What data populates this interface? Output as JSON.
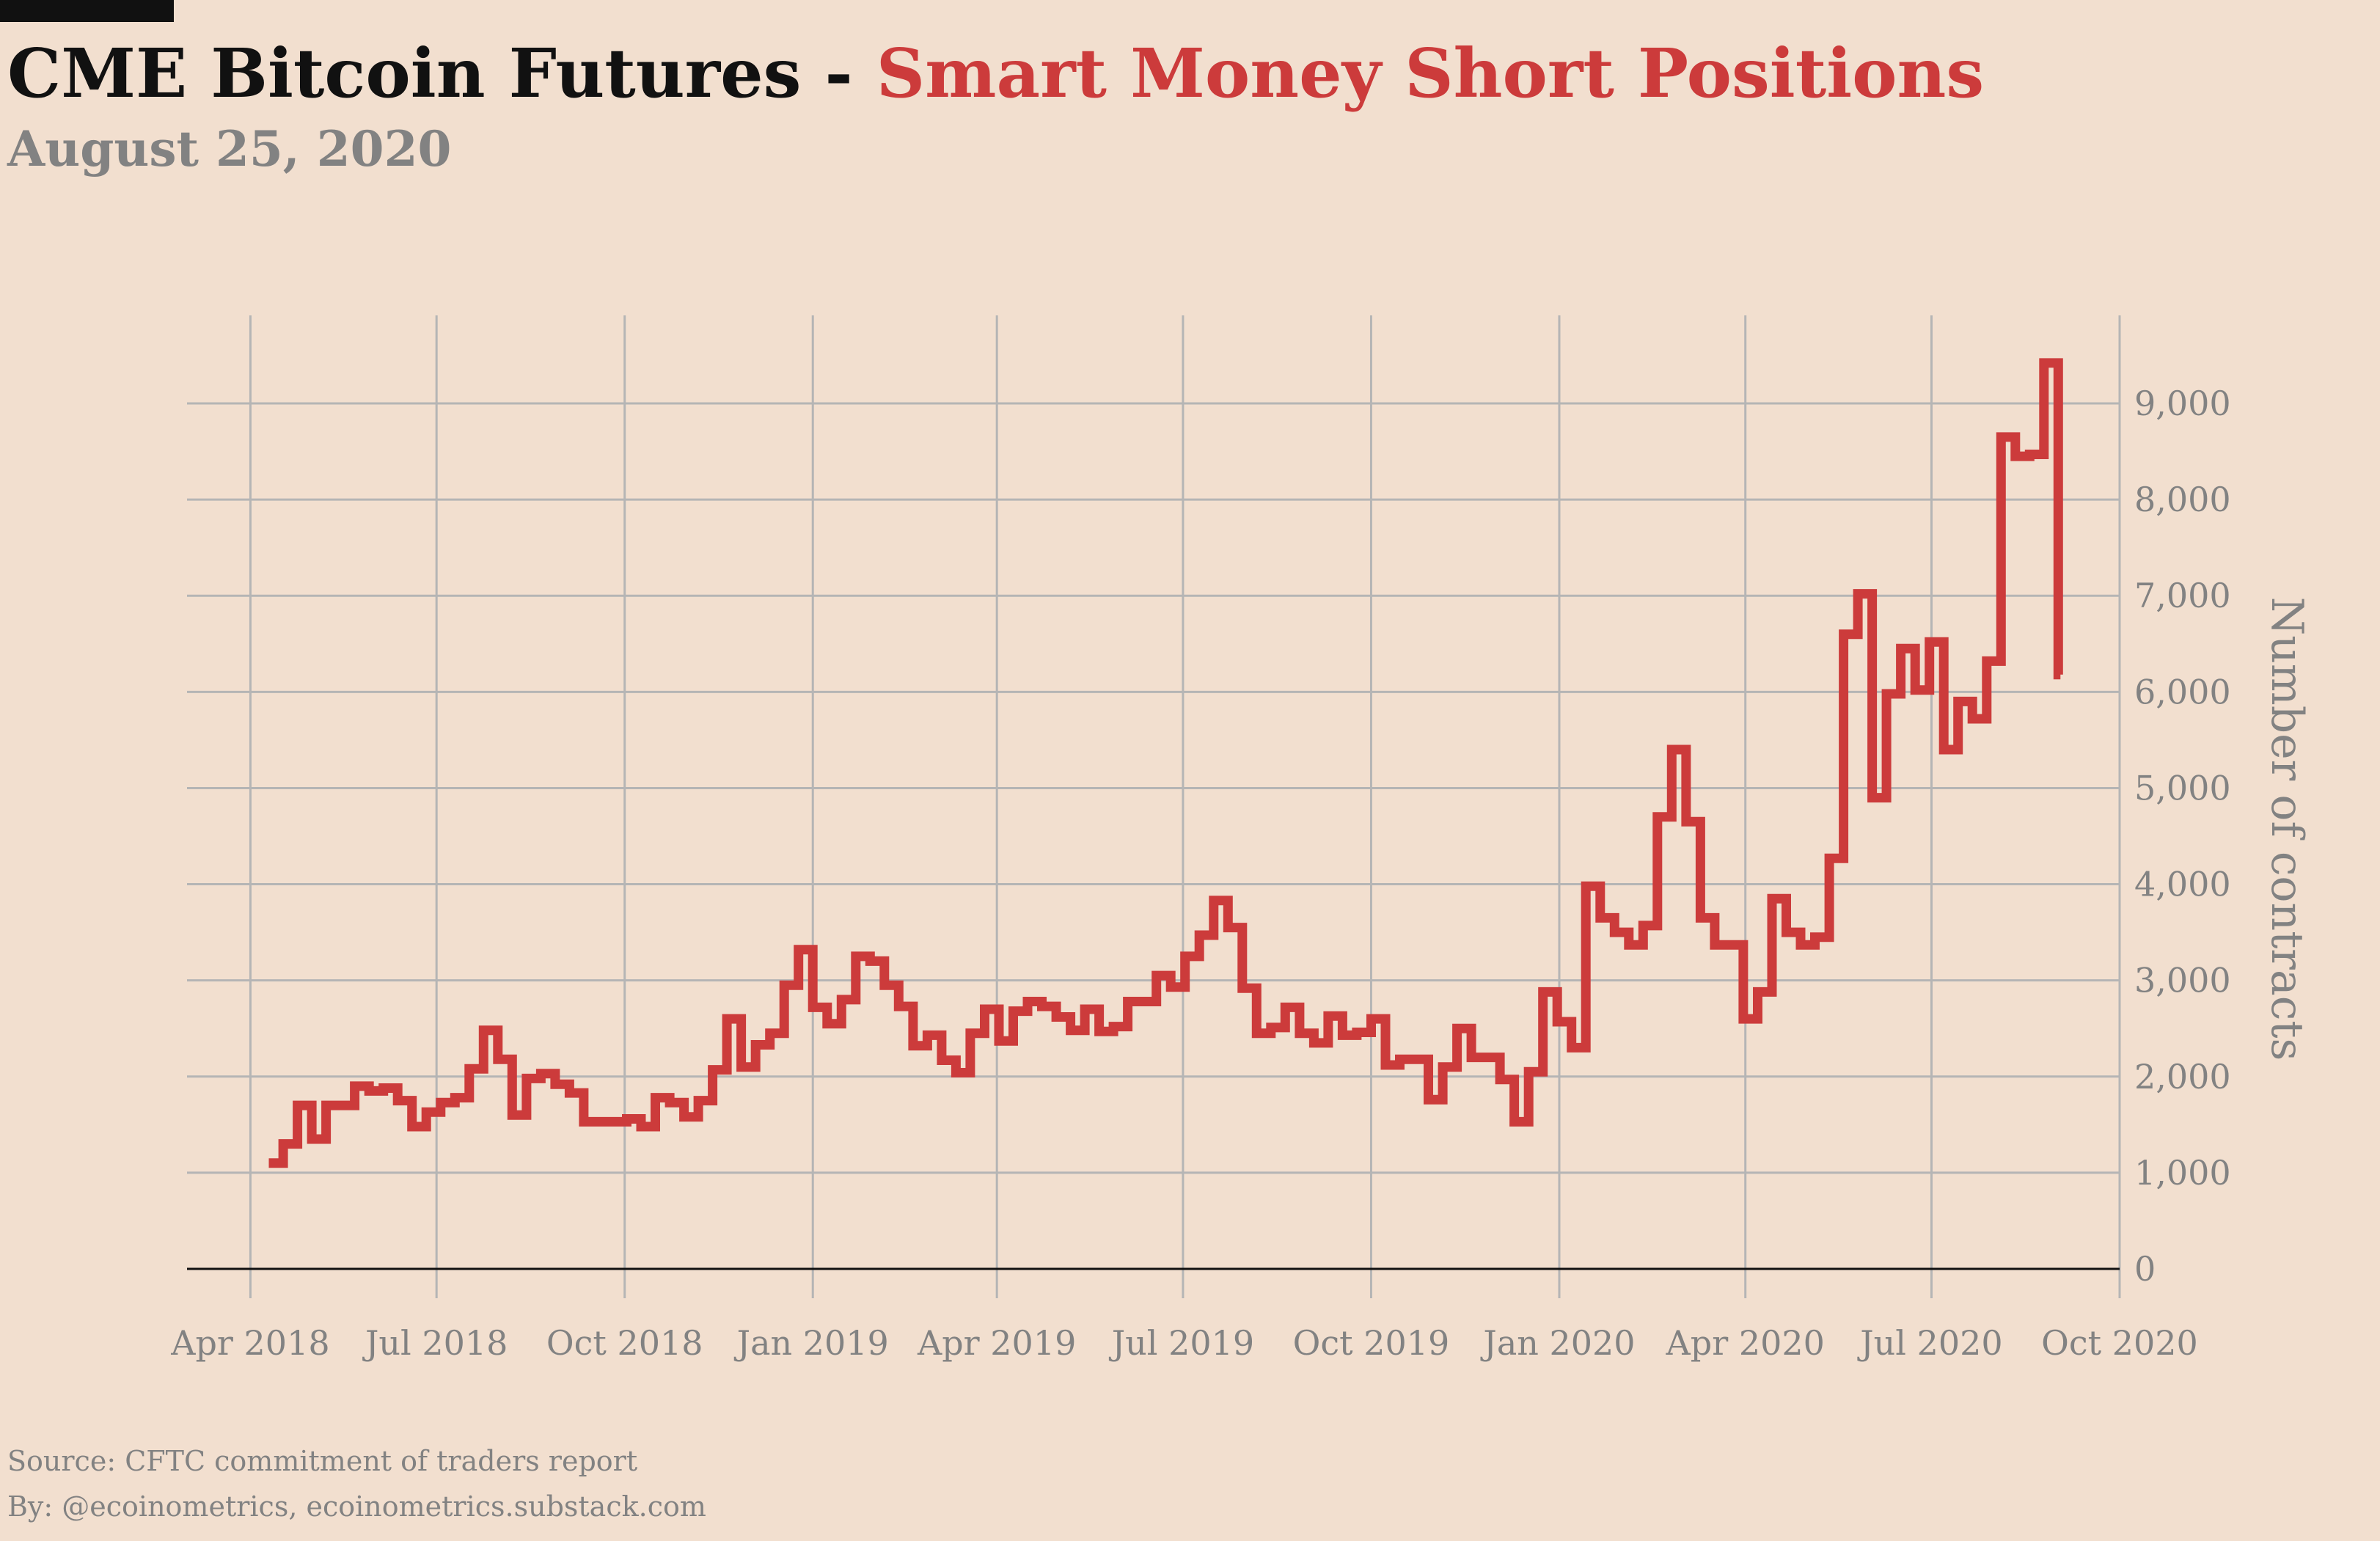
{
  "header": {
    "title_black": "CME Bitcoin Futures - ",
    "title_red": "Smart Money Short Positions",
    "subtitle": "August 25, 2020"
  },
  "footer": {
    "source": "Source: CFTC commitment of traders report",
    "by": "By: @ecoinometrics, ecoinometrics.substack.com"
  },
  "colors": {
    "background": "#f2dfcf",
    "series": "#cc3b3b",
    "grid": "#b5b5b5",
    "text_gray": "#828282",
    "title_black": "#111111"
  },
  "chart_data": {
    "type": "line",
    "step": true,
    "title": "CME Bitcoin Futures - Smart Money Short Positions",
    "subtitle": "August 25, 2020",
    "xlabel": "",
    "ylabel": "Number of contracts",
    "y_axis_side": "right",
    "ylim": [
      0,
      9800
    ],
    "xlim": [
      "2018-03-01",
      "2020-10-01"
    ],
    "grid": true,
    "y_ticks": [
      0,
      1000,
      2000,
      3000,
      4000,
      5000,
      6000,
      7000,
      8000,
      9000
    ],
    "y_tick_labels": [
      "0",
      "1,000",
      "2,000",
      "3,000",
      "4,000",
      "5,000",
      "6,000",
      "7,000",
      "8,000",
      "9,000"
    ],
    "x_ticks": [
      "2018-04-01",
      "2018-07-01",
      "2018-10-01",
      "2019-01-01",
      "2019-04-01",
      "2019-07-01",
      "2019-10-01",
      "2020-01-01",
      "2020-04-01",
      "2020-07-01",
      "2020-10-01"
    ],
    "x_tick_labels": [
      "Apr 2018",
      "Jul 2018",
      "Oct 2018",
      "Jan 2019",
      "Apr 2019",
      "Jul 2019",
      "Oct 2019",
      "Jan 2020",
      "Apr 2020",
      "Jul 2020",
      "Oct 2020"
    ],
    "series": [
      {
        "values": [
          [
            "2018-04-10",
            1100
          ],
          [
            "2018-04-17",
            1300
          ],
          [
            "2018-04-24",
            1700
          ],
          [
            "2018-05-01",
            1350
          ],
          [
            "2018-05-08",
            1700
          ],
          [
            "2018-05-15",
            1700
          ],
          [
            "2018-05-22",
            1900
          ],
          [
            "2018-05-29",
            1850
          ],
          [
            "2018-06-05",
            1880
          ],
          [
            "2018-06-12",
            1750
          ],
          [
            "2018-06-19",
            1480
          ],
          [
            "2018-06-26",
            1630
          ],
          [
            "2018-07-03",
            1730
          ],
          [
            "2018-07-10",
            1780
          ],
          [
            "2018-07-17",
            2080
          ],
          [
            "2018-07-24",
            2480
          ],
          [
            "2018-07-31",
            2180
          ],
          [
            "2018-08-07",
            1600
          ],
          [
            "2018-08-14",
            1980
          ],
          [
            "2018-08-21",
            2030
          ],
          [
            "2018-08-28",
            1920
          ],
          [
            "2018-09-04",
            1830
          ],
          [
            "2018-09-11",
            1530
          ],
          [
            "2018-09-18",
            1530
          ],
          [
            "2018-09-25",
            1530
          ],
          [
            "2018-10-02",
            1560
          ],
          [
            "2018-10-09",
            1480
          ],
          [
            "2018-10-16",
            1780
          ],
          [
            "2018-10-23",
            1730
          ],
          [
            "2018-10-30",
            1580
          ],
          [
            "2018-11-06",
            1750
          ],
          [
            "2018-11-13",
            2070
          ],
          [
            "2018-11-20",
            2600
          ],
          [
            "2018-11-27",
            2100
          ],
          [
            "2018-12-04",
            2330
          ],
          [
            "2018-12-11",
            2450
          ],
          [
            "2018-12-18",
            2950
          ],
          [
            "2018-12-25",
            3320
          ],
          [
            "2019-01-01",
            2720
          ],
          [
            "2019-01-08",
            2550
          ],
          [
            "2019-01-15",
            2800
          ],
          [
            "2019-01-22",
            3250
          ],
          [
            "2019-01-29",
            3200
          ],
          [
            "2019-02-05",
            2950
          ],
          [
            "2019-02-12",
            2730
          ],
          [
            "2019-02-19",
            2320
          ],
          [
            "2019-02-26",
            2430
          ],
          [
            "2019-03-05",
            2170
          ],
          [
            "2019-03-12",
            2040
          ],
          [
            "2019-03-19",
            2450
          ],
          [
            "2019-03-26",
            2700
          ],
          [
            "2019-04-02",
            2370
          ],
          [
            "2019-04-09",
            2680
          ],
          [
            "2019-04-16",
            2780
          ],
          [
            "2019-04-23",
            2730
          ],
          [
            "2019-04-30",
            2620
          ],
          [
            "2019-05-07",
            2480
          ],
          [
            "2019-05-14",
            2700
          ],
          [
            "2019-05-21",
            2470
          ],
          [
            "2019-05-28",
            2520
          ],
          [
            "2019-06-04",
            2780
          ],
          [
            "2019-06-11",
            2780
          ],
          [
            "2019-06-18",
            3050
          ],
          [
            "2019-06-25",
            2930
          ],
          [
            "2019-07-02",
            3250
          ],
          [
            "2019-07-09",
            3470
          ],
          [
            "2019-07-16",
            3830
          ],
          [
            "2019-07-23",
            3550
          ],
          [
            "2019-07-30",
            2920
          ],
          [
            "2019-08-06",
            2450
          ],
          [
            "2019-08-13",
            2510
          ],
          [
            "2019-08-20",
            2720
          ],
          [
            "2019-08-27",
            2450
          ],
          [
            "2019-09-03",
            2350
          ],
          [
            "2019-09-10",
            2630
          ],
          [
            "2019-09-17",
            2430
          ],
          [
            "2019-09-24",
            2460
          ],
          [
            "2019-10-01",
            2600
          ],
          [
            "2019-10-08",
            2120
          ],
          [
            "2019-10-15",
            2180
          ],
          [
            "2019-10-22",
            2180
          ],
          [
            "2019-10-29",
            1760
          ],
          [
            "2019-11-05",
            2100
          ],
          [
            "2019-11-12",
            2500
          ],
          [
            "2019-11-19",
            2200
          ],
          [
            "2019-11-26",
            2200
          ],
          [
            "2019-12-03",
            1970
          ],
          [
            "2019-12-10",
            1530
          ],
          [
            "2019-12-17",
            2050
          ],
          [
            "2019-12-24",
            2880
          ],
          [
            "2019-12-31",
            2570
          ],
          [
            "2020-01-07",
            2300
          ],
          [
            "2020-01-14",
            3980
          ],
          [
            "2020-01-21",
            3650
          ],
          [
            "2020-01-28",
            3500
          ],
          [
            "2020-02-04",
            3370
          ],
          [
            "2020-02-11",
            3570
          ],
          [
            "2020-02-18",
            4700
          ],
          [
            "2020-02-25",
            5400
          ],
          [
            "2020-03-03",
            4650
          ],
          [
            "2020-03-10",
            3650
          ],
          [
            "2020-03-17",
            3370
          ],
          [
            "2020-03-24",
            3370
          ],
          [
            "2020-03-31",
            2600
          ],
          [
            "2020-04-07",
            2880
          ],
          [
            "2020-04-14",
            3850
          ],
          [
            "2020-04-21",
            3500
          ],
          [
            "2020-04-28",
            3370
          ],
          [
            "2020-05-05",
            3450
          ],
          [
            "2020-05-12",
            4270
          ],
          [
            "2020-05-19",
            6600
          ],
          [
            "2020-05-26",
            7020
          ],
          [
            "2020-06-02",
            4900
          ],
          [
            "2020-06-09",
            5980
          ],
          [
            "2020-06-16",
            6450
          ],
          [
            "2020-06-23",
            6020
          ],
          [
            "2020-06-30",
            6520
          ],
          [
            "2020-07-07",
            5400
          ],
          [
            "2020-07-14",
            5900
          ],
          [
            "2020-07-21",
            5720
          ],
          [
            "2020-07-28",
            6320
          ],
          [
            "2020-08-04",
            8650
          ],
          [
            "2020-08-11",
            8450
          ],
          [
            "2020-08-18",
            8470
          ],
          [
            "2020-08-25",
            9420
          ],
          [
            "2020-09-01",
            6180
          ]
        ]
      }
    ]
  }
}
